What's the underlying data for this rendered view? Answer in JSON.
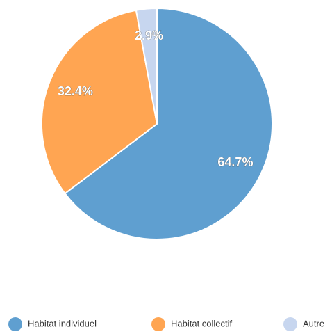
{
  "chart_data": {
    "type": "pie",
    "categories": [
      "Habitat individuel",
      "Habitat collectif",
      "Autre"
    ],
    "values": [
      64.7,
      32.4,
      2.9
    ],
    "value_labels": [
      "64.7%",
      "32.4%",
      "2.9%"
    ],
    "colors": [
      "#5f9fd0",
      "#ffa552",
      "#c7d6ef"
    ]
  }
}
